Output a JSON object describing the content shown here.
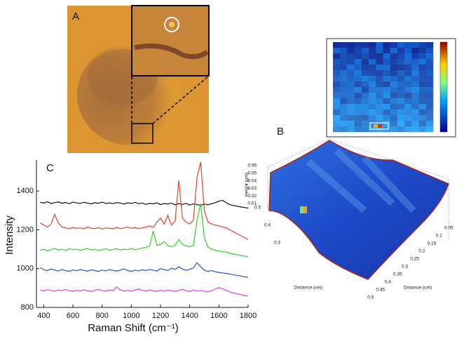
{
  "chart_data": {
    "type": "line",
    "panel_label": "C",
    "x_label": "Raman Shift (cm⁻¹)",
    "y_label": "Intensity",
    "xlim": [
      350,
      1800
    ],
    "ylim": [
      800,
      1560
    ],
    "xticks": [
      400,
      600,
      800,
      1000,
      1200,
      1400,
      1600,
      1800
    ],
    "yticks": [
      800,
      1000,
      1200,
      1400
    ],
    "x": [
      375,
      400,
      425,
      450,
      475,
      500,
      525,
      550,
      575,
      600,
      625,
      650,
      675,
      700,
      725,
      750,
      775,
      800,
      825,
      850,
      875,
      900,
      925,
      950,
      975,
      1000,
      1025,
      1050,
      1075,
      1100,
      1125,
      1150,
      1175,
      1200,
      1225,
      1250,
      1275,
      1300,
      1325,
      1350,
      1375,
      1400,
      1425,
      1450,
      1475,
      1500,
      1525,
      1550,
      1575,
      1600,
      1625,
      1650,
      1675,
      1700,
      1725,
      1750,
      1775,
      1800
    ],
    "series": [
      {
        "color": "#111111",
        "values": [
          1342,
          1338,
          1345,
          1336,
          1340,
          1344,
          1337,
          1341,
          1335,
          1343,
          1339,
          1336,
          1342,
          1338,
          1334,
          1340,
          1337,
          1343,
          1336,
          1339,
          1335,
          1341,
          1338,
          1333,
          1340,
          1336,
          1342,
          1335,
          1338,
          1331,
          1337,
          1334,
          1339,
          1330,
          1336,
          1333,
          1338,
          1329,
          1335,
          1331,
          1336,
          1328,
          1334,
          1330,
          1326,
          1333,
          1329,
          1335,
          1340,
          1348,
          1352,
          1340,
          1330,
          1325,
          1322,
          1318,
          1315,
          1312
        ]
      },
      {
        "color": "#e0452c",
        "values": [
          1235,
          1225,
          1215,
          1230,
          1280,
          1235,
          1215,
          1210,
          1205,
          1212,
          1208,
          1210,
          1205,
          1215,
          1208,
          1206,
          1212,
          1204,
          1210,
          1208,
          1205,
          1212,
          1206,
          1210,
          1215,
          1208,
          1212,
          1206,
          1210,
          1214,
          1220,
          1212,
          1240,
          1260,
          1230,
          1275,
          1225,
          1245,
          1455,
          1260,
          1240,
          1230,
          1250,
          1470,
          1550,
          1300,
          1240,
          1230,
          1225,
          1220,
          1215,
          1210,
          1200,
          1190,
          1180,
          1170,
          1160,
          1150
        ]
      },
      {
        "color": "#2ed22e",
        "values": [
          1095,
          1100,
          1092,
          1098,
          1105,
          1096,
          1100,
          1094,
          1102,
          1097,
          1101,
          1095,
          1099,
          1104,
          1096,
          1100,
          1093,
          1098,
          1102,
          1095,
          1099,
          1103,
          1096,
          1100,
          1098,
          1104,
          1097,
          1101,
          1106,
          1110,
          1115,
          1195,
          1120,
          1125,
          1140,
          1118,
          1112,
          1120,
          1150,
          1125,
          1118,
          1112,
          1120,
          1250,
          1335,
          1160,
          1110,
          1100,
          1095,
          1090,
          1088,
          1085,
          1080,
          1075,
          1072,
          1068,
          1065,
          1060
        ]
      },
      {
        "color": "#2a4fd0",
        "values": [
          1005,
          995,
          990,
          998,
          992,
          988,
          995,
          990,
          986,
          993,
          989,
          995,
          991,
          987,
          994,
          990,
          986,
          992,
          988,
          995,
          991,
          987,
          993,
          999,
          990,
          986,
          992,
          988,
          994,
          990,
          996,
          992,
          988,
          1000,
          995,
          990,
          1002,
          996,
          1010,
          998,
          992,
          996,
          1004,
          1030,
          1010,
          992,
          986,
          990,
          984,
          980,
          978,
          975,
          972,
          968,
          965,
          962,
          958,
          955
        ]
      },
      {
        "color": "#e040e0",
        "values": [
          890,
          885,
          892,
          888,
          884,
          890,
          886,
          892,
          887,
          883,
          889,
          885,
          891,
          886,
          882,
          888,
          893,
          887,
          884,
          890,
          886,
          905,
          890,
          885,
          888,
          884,
          890,
          895,
          888,
          884,
          890,
          886,
          882,
          888,
          884,
          890,
          886,
          882,
          888,
          893,
          886,
          882,
          890,
          884,
          888,
          884,
          880,
          886,
          895,
          902,
          896,
          888,
          880,
          875,
          870,
          866,
          862,
          858
        ]
      }
    ]
  },
  "panel_a": {
    "label": "A"
  },
  "panel_b": {
    "label": "B",
    "z_label": "Height (μm)",
    "z_ticks": [
      0.01,
      0.02,
      0.03,
      0.04,
      0.05,
      0.06
    ],
    "left_label": "Distance (um)",
    "left_ticks": [
      0.5,
      0.4,
      0.3
    ],
    "right_label": "Distance (um)",
    "right_ticks": [
      0.05,
      0.1,
      0.15,
      0.2,
      0.25,
      0.3,
      0.35,
      0.4,
      0.45,
      0.5
    ]
  }
}
